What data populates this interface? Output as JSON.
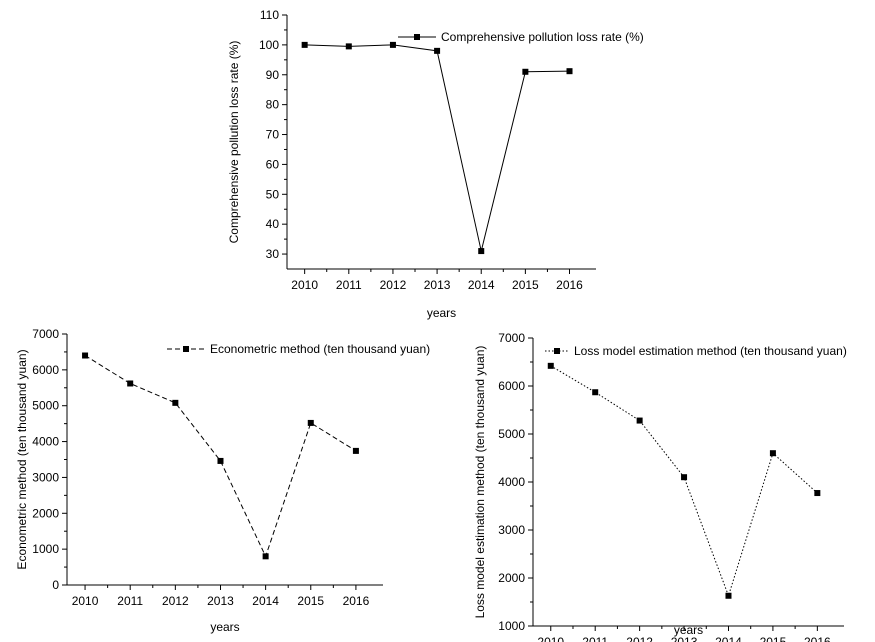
{
  "chart_data": [
    {
      "type": "line",
      "title": "",
      "xlabel": "years",
      "ylabel": "Comprehensive pollution loss rate (%)",
      "x": [
        2010,
        2011,
        2012,
        2013,
        2014,
        2015,
        2016
      ],
      "xlim": [
        2009.6,
        2016.6
      ],
      "ylim": [
        25,
        110
      ],
      "yticks": [
        30,
        40,
        50,
        60,
        70,
        80,
        90,
        100,
        110
      ],
      "series": [
        {
          "name": "Comprehensive pollution loss rate (%)",
          "line_style": "solid",
          "values": [
            100,
            99.5,
            100,
            98,
            31,
            91,
            91.2
          ]
        }
      ],
      "legend": "top-right",
      "grid": false
    },
    {
      "type": "line",
      "title": "",
      "xlabel": "years",
      "ylabel": "Econometric method (ten thousand yuan)",
      "x": [
        2010,
        2011,
        2012,
        2013,
        2014,
        2015,
        2016
      ],
      "xlim": [
        2009.6,
        2016.6
      ],
      "ylim": [
        0,
        7000
      ],
      "yticks": [
        0,
        1000,
        2000,
        3000,
        4000,
        5000,
        6000,
        7000
      ],
      "series": [
        {
          "name": "Econometric method (ten thousand yuan)",
          "line_style": "dashed",
          "values": [
            6400,
            5620,
            5080,
            3460,
            800,
            4520,
            3740
          ]
        }
      ],
      "legend": "top-right",
      "grid": false
    },
    {
      "type": "line",
      "title": "",
      "xlabel": "years",
      "ylabel": "Loss model estimation method (ten thousand yuan)",
      "x": [
        2010,
        2011,
        2012,
        2013,
        2014,
        2015,
        2016
      ],
      "xlim": [
        2009.6,
        2016.6
      ],
      "ylim": [
        1000,
        7000
      ],
      "yticks": [
        1000,
        2000,
        3000,
        4000,
        5000,
        6000,
        7000
      ],
      "series": [
        {
          "name": "Loss model estimation method (ten thousand yuan)",
          "line_style": "dotted",
          "values": [
            6420,
            5870,
            5280,
            4100,
            1630,
            4600,
            3770
          ]
        }
      ],
      "legend": "top-right",
      "grid": false
    }
  ]
}
